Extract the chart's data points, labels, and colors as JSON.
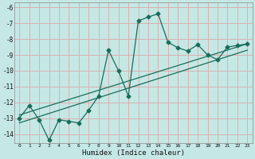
{
  "xlabel": "Humidex (Indice chaleur)",
  "bg_color": "#c5e8e5",
  "grid_color": "#dca8a8",
  "line_color": "#1a6b5a",
  "xlim": [
    -0.5,
    23.5
  ],
  "ylim": [
    -14.6,
    -5.7
  ],
  "yticks": [
    -6,
    -7,
    -8,
    -9,
    -10,
    -11,
    -12,
    -13,
    -14
  ],
  "xticks": [
    0,
    1,
    2,
    3,
    4,
    5,
    6,
    7,
    8,
    9,
    10,
    11,
    12,
    13,
    14,
    15,
    16,
    17,
    18,
    19,
    20,
    21,
    22,
    23
  ],
  "line1_x": [
    0,
    1,
    2,
    3,
    4,
    5,
    6,
    7,
    8,
    9,
    10,
    11,
    12,
    13,
    14,
    15,
    16,
    17,
    18,
    19,
    20,
    21,
    22,
    23
  ],
  "line1_y": [
    -13.0,
    -12.2,
    -13.1,
    -14.4,
    -13.1,
    -13.2,
    -13.3,
    -12.5,
    -11.6,
    -8.7,
    -10.0,
    -11.6,
    -6.85,
    -6.6,
    -6.4,
    -8.2,
    -8.55,
    -8.75,
    -8.35,
    -9.0,
    -9.3,
    -8.5,
    -8.4,
    -8.3
  ],
  "line2_x": [
    0,
    23
  ],
  "line2_y": [
    -12.8,
    -8.3
  ],
  "line3_x": [
    0,
    23
  ],
  "line3_y": [
    -13.3,
    -8.7
  ],
  "markersize": 2.5,
  "linewidth": 0.9
}
